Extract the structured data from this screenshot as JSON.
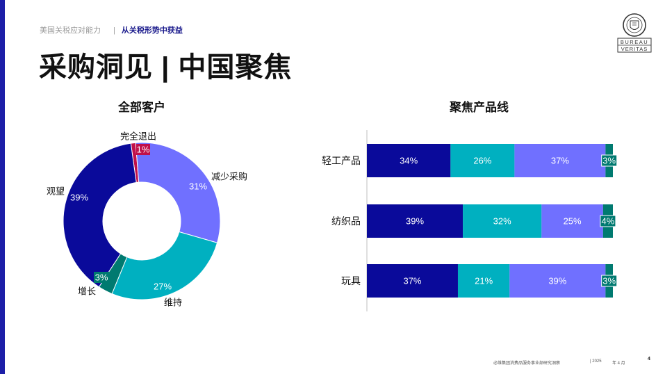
{
  "header": {
    "breadcrumb_parent": "美国关税应对能力",
    "breadcrumb_separator": "|",
    "breadcrumb_active": "从关税形势中获益",
    "page_title": "采购洞见 | 中国聚焦",
    "logo_text_line1": "BUREAU",
    "logo_text_line2": "VERITAS"
  },
  "colors": {
    "navy": "#0a0a9a",
    "teal": "#00b0c0",
    "periwinkle": "#7070ff",
    "dark_teal": "#007a70",
    "crimson": "#c0104a",
    "accent_bar": "#1d1fa8"
  },
  "chart_data": [
    {
      "type": "pie",
      "title": "全部客户",
      "slices": [
        {
          "label": "完全退出",
          "value": 1,
          "display": "1%",
          "color": "#c0104a"
        },
        {
          "label": "减少采购",
          "value": 31,
          "display": "31%",
          "color": "#7070ff"
        },
        {
          "label": "维持",
          "value": 27,
          "display": "27%",
          "color": "#00b0c0"
        },
        {
          "label": "增长",
          "value": 3,
          "display": "3%",
          "color": "#007a70"
        },
        {
          "label": "观望",
          "value": 39,
          "display": "39%",
          "color": "#0a0a9a"
        }
      ]
    },
    {
      "type": "bar",
      "orientation": "horizontal",
      "stacked": true,
      "title": "聚焦产品线",
      "categories": [
        "轻工产品",
        "纺织品",
        "玩具"
      ],
      "series": [
        {
          "color": "#0a0a9a",
          "values": [
            34,
            39,
            37
          ],
          "labels": [
            "34%",
            "39%",
            "37%"
          ]
        },
        {
          "color": "#00b0c0",
          "values": [
            26,
            32,
            21
          ],
          "labels": [
            "26%",
            "32%",
            "21%"
          ]
        },
        {
          "color": "#7070ff",
          "values": [
            37,
            25,
            39
          ],
          "labels": [
            "37%",
            "25%",
            "39%"
          ]
        },
        {
          "color": "#007a70",
          "values": [
            3,
            4,
            3
          ],
          "labels": [
            "3%",
            "4%",
            "3%"
          ]
        }
      ]
    }
  ],
  "footer": {
    "org": "必维集团消费品服务事业部研究洞察",
    "year": "| 2025",
    "month": "年 4 月",
    "page_number": "4"
  }
}
